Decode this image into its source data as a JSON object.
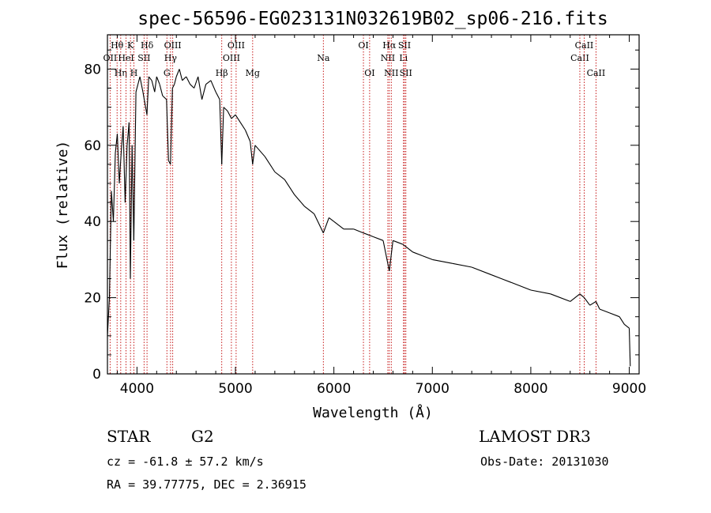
{
  "chart_data": {
    "type": "line",
    "title": "spec-56596-EG023131N032619B02_sp06-216.fits",
    "xlabel": "Wavelength (Å)",
    "ylabel": "Flux (relative)",
    "xlim": [
      3700,
      9100
    ],
    "ylim": [
      0,
      89
    ],
    "xticks": [
      4000,
      5000,
      6000,
      7000,
      8000,
      9000
    ],
    "yticks": [
      0,
      20,
      40,
      60,
      80
    ],
    "line_color": "#000000",
    "marker_color": "#c00000",
    "series": [
      {
        "name": "flux",
        "x": [
          3700,
          3720,
          3740,
          3760,
          3780,
          3800,
          3820,
          3840,
          3860,
          3880,
          3900,
          3920,
          3933,
          3950,
          3968,
          3990,
          4010,
          4030,
          4060,
          4101,
          4120,
          4150,
          4180,
          4200,
          4230,
          4260,
          4300,
          4320,
          4340,
          4360,
          4380,
          4400,
          4430,
          4460,
          4500,
          4540,
          4580,
          4620,
          4660,
          4700,
          4750,
          4800,
          4840,
          4861,
          4880,
          4920,
          4960,
          5000,
          5050,
          5100,
          5150,
          5175,
          5200,
          5300,
          5400,
          5500,
          5600,
          5700,
          5800,
          5893,
          5950,
          6000,
          6100,
          6200,
          6300,
          6400,
          6500,
          6563,
          6600,
          6700,
          6800,
          6900,
          7000,
          7200,
          7400,
          7600,
          7800,
          8000,
          8200,
          8400,
          8498,
          8542,
          8600,
          8662,
          8700,
          8800,
          8900,
          8950,
          9000,
          9010
        ],
        "y": [
          10,
          20,
          48,
          40,
          58,
          63,
          50,
          58,
          65,
          45,
          60,
          66,
          25,
          60,
          35,
          74,
          76,
          78,
          74,
          68,
          78,
          77,
          74,
          78,
          76,
          73,
          72,
          56,
          55,
          75,
          76,
          78,
          80,
          77,
          78,
          76,
          75,
          78,
          72,
          76,
          77,
          74,
          72,
          55,
          70,
          69,
          67,
          68,
          66,
          64,
          61,
          55,
          60,
          57,
          53,
          51,
          47,
          44,
          42,
          37,
          41,
          40,
          38,
          38,
          37,
          36,
          35,
          27,
          35,
          34,
          32,
          31,
          30,
          29,
          28,
          26,
          24,
          22,
          21,
          19,
          21,
          20,
          18,
          19,
          17,
          16,
          15,
          13,
          12,
          2
        ]
      }
    ],
    "markers": [
      {
        "wave": 3727,
        "label": "OII",
        "row": 2
      },
      {
        "wave": 3798,
        "label": "Hθ",
        "row": 1
      },
      {
        "wave": 3835,
        "label": "Hη",
        "row": 3
      },
      {
        "wave": 3889,
        "label": "HeI",
        "row": 2
      },
      {
        "wave": 3934,
        "label": "K",
        "row": 1
      },
      {
        "wave": 3969,
        "label": "H",
        "row": 3
      },
      {
        "wave": 4102,
        "label": "Hδ",
        "row": 1
      },
      {
        "wave": 4072,
        "label": "SII",
        "row": 2
      },
      {
        "wave": 4304,
        "label": "G",
        "row": 3
      },
      {
        "wave": 4341,
        "label": "Hγ",
        "row": 2
      },
      {
        "wave": 4363,
        "label": "OIII",
        "row": 1
      },
      {
        "wave": 4861,
        "label": "Hβ",
        "row": 3
      },
      {
        "wave": 4959,
        "label": "OIII",
        "row": 2
      },
      {
        "wave": 5007,
        "label": "OIII",
        "row": 1
      },
      {
        "wave": 5175,
        "label": "Mg",
        "row": 3
      },
      {
        "wave": 5893,
        "label": "Na",
        "row": 2
      },
      {
        "wave": 6300,
        "label": "OI",
        "row": 1
      },
      {
        "wave": 6363,
        "label": "OI",
        "row": 3
      },
      {
        "wave": 6548,
        "label": "NII",
        "row": 2
      },
      {
        "wave": 6563,
        "label": "Hα",
        "row": 1
      },
      {
        "wave": 6583,
        "label": "NII",
        "row": 3
      },
      {
        "wave": 6707,
        "label": "Li",
        "row": 2
      },
      {
        "wave": 6717,
        "label": "SII",
        "row": 1
      },
      {
        "wave": 6731,
        "label": "SII",
        "row": 3
      },
      {
        "wave": 8498,
        "label": "CaII",
        "row": 2
      },
      {
        "wave": 8542,
        "label": "CaII",
        "row": 1
      },
      {
        "wave": 8662,
        "label": "CaII",
        "row": 3
      }
    ]
  },
  "info": {
    "class_label": "STAR",
    "subclass": "G2",
    "survey": "LAMOST DR3",
    "cz_line": "cz = -61.8 ± 57.2 km/s",
    "obs_date": "Obs-Date: 20131030",
    "radec_line": "RA =  39.77775, DEC =   2.36915"
  }
}
